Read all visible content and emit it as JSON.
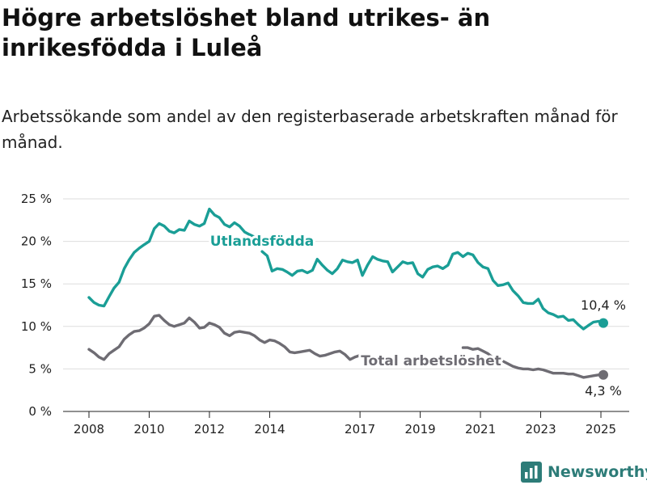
{
  "title": "Högre arbetslöshet bland utrikes- än inrikesfödda i Luleå",
  "subtitle": "Arbetssökande som andel av den registerbaserade arbetskraften månad för månad.",
  "brand": {
    "name": "Newsworthy",
    "icon": "bar-chart-logo-icon"
  },
  "chart_data": {
    "type": "line",
    "x_ticks": [
      2008,
      2010,
      2012,
      2014,
      2017,
      2019,
      2021,
      2023,
      2025
    ],
    "y_ticks": [
      "0 %",
      "5 %",
      "10 %",
      "15 %",
      "20 %",
      "25 %"
    ],
    "ylim": [
      0,
      25
    ],
    "grid": true,
    "series": [
      {
        "name": "Utlandsfödda",
        "color": "#1a9e96",
        "end_label": "10,4 %",
        "points": [
          [
            2008.0,
            13.4
          ],
          [
            2008.17,
            12.8
          ],
          [
            2008.33,
            12.5
          ],
          [
            2008.5,
            12.4
          ],
          [
            2008.67,
            13.5
          ],
          [
            2008.83,
            14.5
          ],
          [
            2009.0,
            15.2
          ],
          [
            2009.17,
            16.8
          ],
          [
            2009.33,
            17.8
          ],
          [
            2009.5,
            18.7
          ],
          [
            2009.67,
            19.2
          ],
          [
            2009.83,
            19.6
          ],
          [
            2010.0,
            20.0
          ],
          [
            2010.17,
            21.5
          ],
          [
            2010.33,
            22.1
          ],
          [
            2010.5,
            21.8
          ],
          [
            2010.67,
            21.2
          ],
          [
            2010.83,
            21.0
          ],
          [
            2011.0,
            21.4
          ],
          [
            2011.17,
            21.3
          ],
          [
            2011.33,
            22.4
          ],
          [
            2011.5,
            22.0
          ],
          [
            2011.67,
            21.8
          ],
          [
            2011.83,
            22.1
          ],
          [
            2012.0,
            23.8
          ],
          [
            2012.17,
            23.1
          ],
          [
            2012.33,
            22.8
          ],
          [
            2012.5,
            22.0
          ],
          [
            2012.67,
            21.7
          ],
          [
            2012.83,
            22.2
          ],
          [
            2013.0,
            21.8
          ],
          [
            2013.17,
            21.1
          ],
          [
            2013.33,
            20.8
          ],
          [
            2013.5,
            20.5
          ],
          null,
          [
            2013.75,
            18.8
          ],
          [
            2013.92,
            18.3
          ],
          [
            2014.08,
            16.5
          ],
          [
            2014.25,
            16.8
          ],
          [
            2014.42,
            16.7
          ],
          [
            2014.58,
            16.4
          ],
          [
            2014.75,
            16.0
          ],
          [
            2014.92,
            16.5
          ],
          [
            2015.08,
            16.6
          ],
          [
            2015.25,
            16.3
          ],
          [
            2015.42,
            16.6
          ],
          [
            2015.58,
            17.9
          ],
          [
            2015.75,
            17.2
          ],
          [
            2015.92,
            16.6
          ],
          [
            2016.08,
            16.2
          ],
          [
            2016.25,
            16.8
          ],
          [
            2016.42,
            17.8
          ],
          [
            2016.58,
            17.6
          ],
          [
            2016.75,
            17.5
          ],
          [
            2016.92,
            17.8
          ],
          [
            2017.08,
            16.0
          ],
          [
            2017.25,
            17.2
          ],
          [
            2017.42,
            18.2
          ],
          [
            2017.58,
            17.9
          ],
          [
            2017.75,
            17.7
          ],
          [
            2017.92,
            17.6
          ],
          [
            2018.08,
            16.4
          ],
          [
            2018.25,
            17.0
          ],
          [
            2018.42,
            17.6
          ],
          [
            2018.58,
            17.4
          ],
          [
            2018.75,
            17.5
          ],
          [
            2018.92,
            16.2
          ],
          [
            2019.08,
            15.8
          ],
          [
            2019.25,
            16.7
          ],
          [
            2019.42,
            17.0
          ],
          [
            2019.58,
            17.1
          ],
          [
            2019.75,
            16.8
          ],
          [
            2019.92,
            17.2
          ],
          [
            2020.08,
            18.5
          ],
          [
            2020.25,
            18.7
          ],
          [
            2020.42,
            18.2
          ],
          [
            2020.58,
            18.6
          ],
          [
            2020.75,
            18.4
          ],
          [
            2020.92,
            17.5
          ],
          [
            2021.08,
            17.0
          ],
          [
            2021.25,
            16.8
          ],
          [
            2021.42,
            15.4
          ],
          [
            2021.58,
            14.8
          ],
          [
            2021.75,
            14.9
          ],
          [
            2021.92,
            15.1
          ],
          [
            2022.08,
            14.2
          ],
          [
            2022.25,
            13.6
          ],
          [
            2022.42,
            12.8
          ],
          [
            2022.58,
            12.7
          ],
          [
            2022.75,
            12.7
          ],
          [
            2022.92,
            13.2
          ],
          [
            2023.08,
            12.1
          ],
          [
            2023.25,
            11.6
          ],
          [
            2023.42,
            11.4
          ],
          [
            2023.58,
            11.1
          ],
          [
            2023.75,
            11.2
          ],
          [
            2023.92,
            10.7
          ],
          [
            2024.08,
            10.8
          ],
          [
            2024.25,
            10.2
          ],
          [
            2024.42,
            9.7
          ],
          [
            2024.58,
            10.1
          ],
          [
            2024.75,
            10.5
          ],
          [
            2024.92,
            10.6
          ],
          [
            2025.08,
            10.4
          ]
        ]
      },
      {
        "name": "Total arbetslöshet",
        "color": "#6e6c73",
        "end_label": "4,3 %",
        "points": [
          [
            2008.0,
            7.3
          ],
          [
            2008.17,
            6.9
          ],
          [
            2008.33,
            6.4
          ],
          [
            2008.5,
            6.1
          ],
          [
            2008.67,
            6.8
          ],
          [
            2008.83,
            7.2
          ],
          [
            2009.0,
            7.6
          ],
          [
            2009.17,
            8.5
          ],
          [
            2009.33,
            9.0
          ],
          [
            2009.5,
            9.4
          ],
          [
            2009.67,
            9.5
          ],
          [
            2009.83,
            9.8
          ],
          [
            2010.0,
            10.3
          ],
          [
            2010.17,
            11.2
          ],
          [
            2010.33,
            11.3
          ],
          [
            2010.5,
            10.7
          ],
          [
            2010.67,
            10.2
          ],
          [
            2010.83,
            10.0
          ],
          [
            2011.0,
            10.2
          ],
          [
            2011.17,
            10.4
          ],
          [
            2011.33,
            11.0
          ],
          [
            2011.5,
            10.5
          ],
          [
            2011.67,
            9.8
          ],
          [
            2011.83,
            9.9
          ],
          [
            2012.0,
            10.4
          ],
          [
            2012.17,
            10.2
          ],
          [
            2012.33,
            9.9
          ],
          [
            2012.5,
            9.2
          ],
          [
            2012.67,
            8.9
          ],
          [
            2012.83,
            9.3
          ],
          [
            2013.0,
            9.4
          ],
          [
            2013.17,
            9.3
          ],
          [
            2013.33,
            9.2
          ],
          [
            2013.5,
            8.9
          ],
          [
            2013.67,
            8.4
          ],
          [
            2013.83,
            8.1
          ],
          [
            2014.0,
            8.4
          ],
          [
            2014.17,
            8.3
          ],
          [
            2014.33,
            8.0
          ],
          [
            2014.5,
            7.6
          ],
          [
            2014.67,
            7.0
          ],
          [
            2014.83,
            6.9
          ],
          [
            2015.0,
            7.0
          ],
          [
            2015.17,
            7.1
          ],
          [
            2015.33,
            7.2
          ],
          [
            2015.5,
            6.8
          ],
          [
            2015.67,
            6.5
          ],
          [
            2015.83,
            6.6
          ],
          [
            2016.0,
            6.8
          ],
          [
            2016.17,
            7.0
          ],
          [
            2016.33,
            7.1
          ],
          [
            2016.5,
            6.7
          ],
          [
            2016.67,
            6.1
          ],
          [
            2016.83,
            6.4
          ],
          [
            2017.0,
            6.6
          ],
          null,
          [
            2020.42,
            7.5
          ],
          [
            2020.58,
            7.5
          ],
          [
            2020.75,
            7.3
          ],
          [
            2020.92,
            7.4
          ],
          [
            2021.08,
            7.1
          ],
          [
            2021.25,
            6.8
          ],
          [
            2021.42,
            6.3
          ],
          [
            2021.58,
            6.0
          ],
          [
            2021.75,
            5.9
          ],
          [
            2021.92,
            5.6
          ],
          [
            2022.08,
            5.3
          ],
          [
            2022.25,
            5.1
          ],
          [
            2022.42,
            5.0
          ],
          [
            2022.58,
            5.0
          ],
          [
            2022.75,
            4.9
          ],
          [
            2022.92,
            5.0
          ],
          [
            2023.08,
            4.9
          ],
          [
            2023.25,
            4.7
          ],
          [
            2023.42,
            4.5
          ],
          [
            2023.58,
            4.5
          ],
          [
            2023.75,
            4.5
          ],
          [
            2023.92,
            4.4
          ],
          [
            2024.08,
            4.4
          ],
          [
            2024.25,
            4.2
          ],
          [
            2024.42,
            4.0
          ],
          [
            2024.58,
            4.1
          ],
          [
            2024.75,
            4.2
          ],
          [
            2024.92,
            4.3
          ],
          [
            2025.08,
            4.3
          ]
        ]
      }
    ]
  }
}
